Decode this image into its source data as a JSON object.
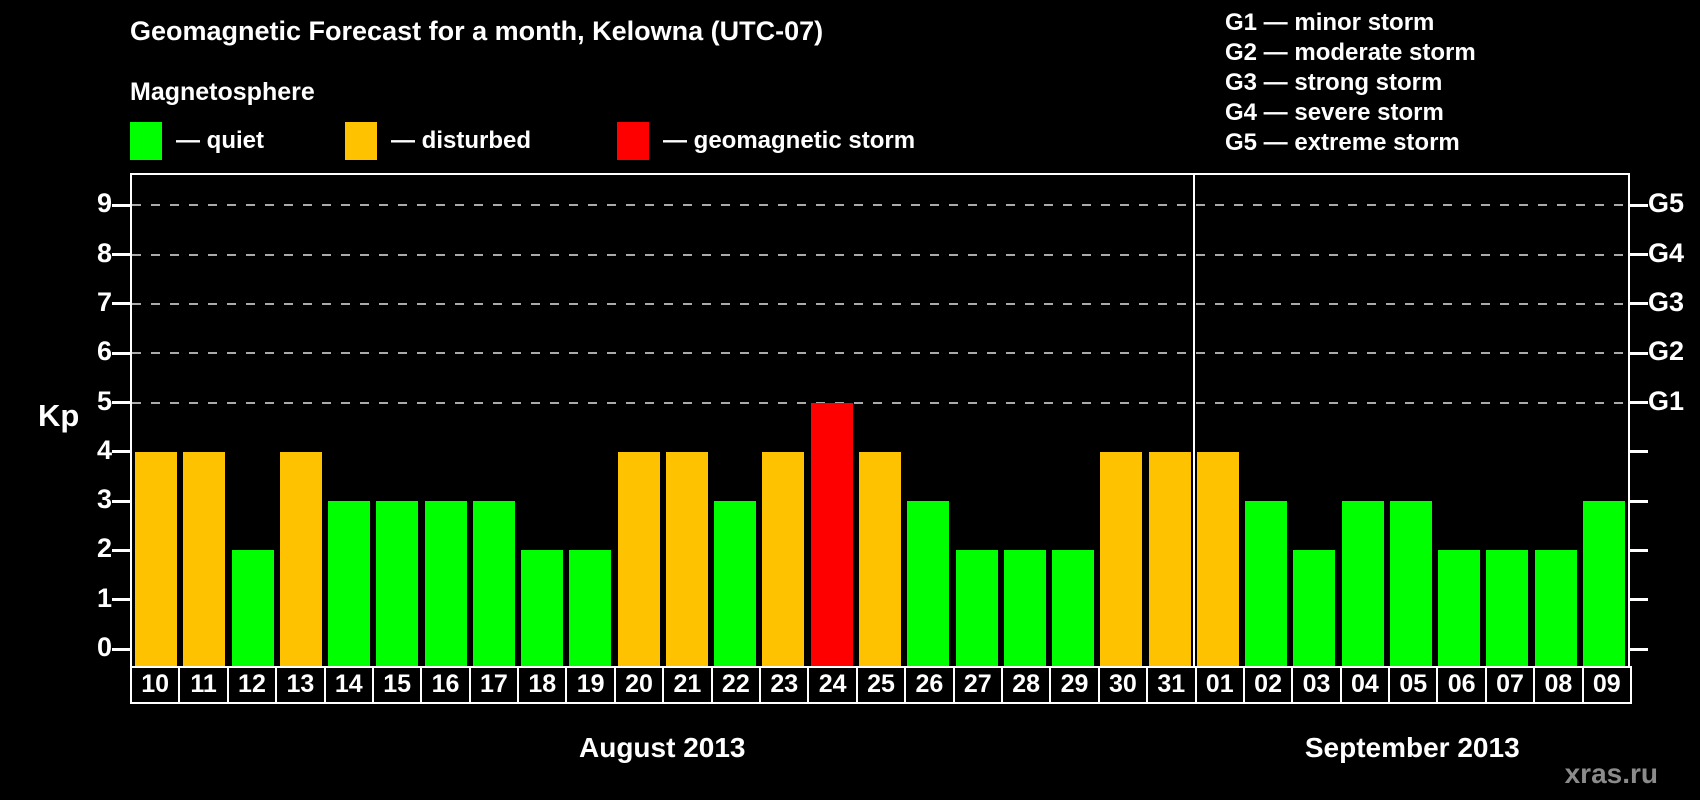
{
  "title": "Geomagnetic Forecast for a month, Kelowna (UTC-07)",
  "legend": {
    "heading": "Magnetosphere",
    "items": [
      {
        "key": "quiet",
        "label": "— quiet",
        "color": "#00ff00"
      },
      {
        "key": "disturbed",
        "label": "— disturbed",
        "color": "#ffc200"
      },
      {
        "key": "storm",
        "label": "— geomagnetic storm",
        "color": "#ff0000"
      }
    ]
  },
  "g_scale_legend": [
    "G1 — minor storm",
    "G2 — moderate storm",
    "G3 — strong storm",
    "G4 — severe storm",
    "G5 — extreme storm"
  ],
  "watermark": "xras.ru",
  "chart_data": {
    "type": "bar",
    "title": "Geomagnetic Forecast for a month, Kelowna (UTC-07)",
    "ylabel": "Kp",
    "ylim": [
      0,
      9
    ],
    "left_ticks": [
      "0",
      "1",
      "2",
      "3",
      "4",
      "5",
      "6",
      "7",
      "8",
      "9"
    ],
    "right_axis": [
      {
        "label": "G1",
        "kp": 5
      },
      {
        "label": "G2",
        "kp": 6
      },
      {
        "label": "G3",
        "kp": 7
      },
      {
        "label": "G4",
        "kp": 8
      },
      {
        "label": "G5",
        "kp": 9
      }
    ],
    "gridlines_at_kp": [
      5,
      6,
      7,
      8,
      9
    ],
    "grid": "dashed horizontal lines at Kp 5-9 only",
    "legend_position": "top",
    "categories": [
      "10",
      "11",
      "12",
      "13",
      "14",
      "15",
      "16",
      "17",
      "18",
      "19",
      "20",
      "21",
      "22",
      "23",
      "24",
      "25",
      "26",
      "27",
      "28",
      "29",
      "30",
      "31",
      "01",
      "02",
      "03",
      "04",
      "05",
      "06",
      "07",
      "08",
      "09"
    ],
    "values": [
      4,
      4,
      2,
      4,
      3,
      3,
      3,
      3,
      2,
      2,
      4,
      4,
      3,
      4,
      5,
      4,
      3,
      2,
      2,
      2,
      4,
      4,
      4,
      3,
      2,
      3,
      3,
      2,
      2,
      2,
      3
    ],
    "statuses": [
      "disturbed",
      "disturbed",
      "quiet",
      "disturbed",
      "quiet",
      "quiet",
      "quiet",
      "quiet",
      "quiet",
      "quiet",
      "disturbed",
      "disturbed",
      "quiet",
      "disturbed",
      "storm",
      "disturbed",
      "quiet",
      "quiet",
      "quiet",
      "quiet",
      "disturbed",
      "disturbed",
      "disturbed",
      "quiet",
      "quiet",
      "quiet",
      "quiet",
      "quiet",
      "quiet",
      "quiet",
      "quiet"
    ],
    "colors": {
      "quiet": "#00ff00",
      "disturbed": "#ffc200",
      "storm": "#ff0000"
    },
    "months": [
      {
        "label": "August 2013",
        "start_index": 0,
        "days": 22
      },
      {
        "label": "September 2013",
        "start_index": 22,
        "days": 9
      }
    ]
  }
}
